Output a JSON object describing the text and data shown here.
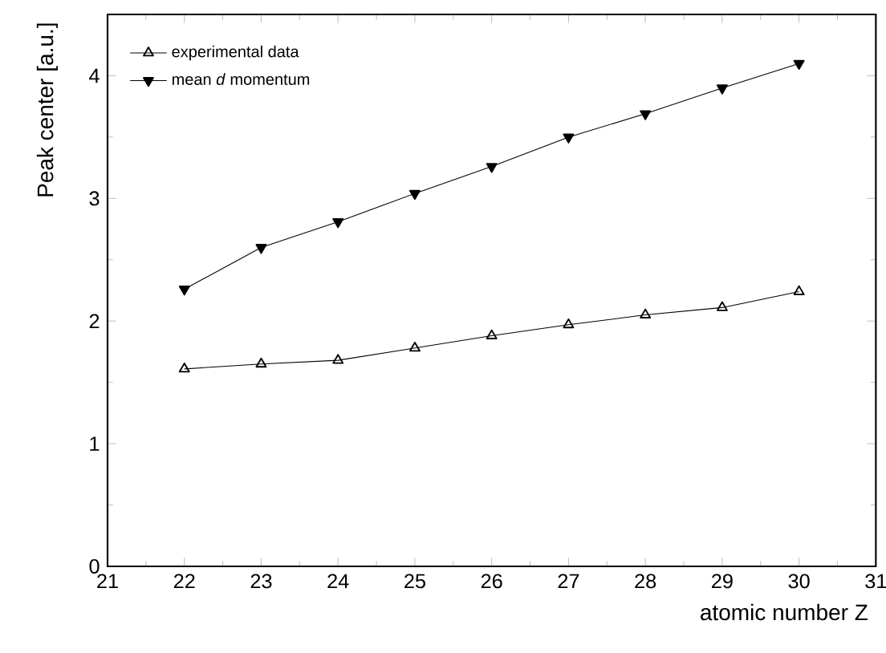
{
  "chart_data": {
    "type": "line",
    "xlabel": "atomic number Z",
    "ylabel": "Peak center [a.u.]",
    "x": [
      22,
      23,
      24,
      25,
      26,
      27,
      28,
      29,
      30
    ],
    "series": [
      {
        "name": "experimental data",
        "color": "#000000",
        "marker": "triangle",
        "values": [
          1.61,
          1.65,
          1.68,
          1.78,
          1.88,
          1.97,
          2.05,
          2.11,
          2.24
        ]
      },
      {
        "name": "mean *d* momentum",
        "color": "#000000",
        "marker": "triangle-down",
        "values": [
          2.26,
          2.6,
          2.81,
          3.04,
          3.26,
          3.5,
          3.69,
          3.9,
          4.1
        ]
      }
    ],
    "xlim": [
      21,
      31
    ],
    "ylim": [
      0,
      4.5
    ],
    "xticks": [
      21,
      22,
      23,
      24,
      25,
      26,
      27,
      28,
      29,
      30,
      31
    ],
    "yticks": [
      0,
      1,
      2,
      3,
      4
    ],
    "legend": "top left",
    "grid": false,
    "line_style": "solid"
  }
}
